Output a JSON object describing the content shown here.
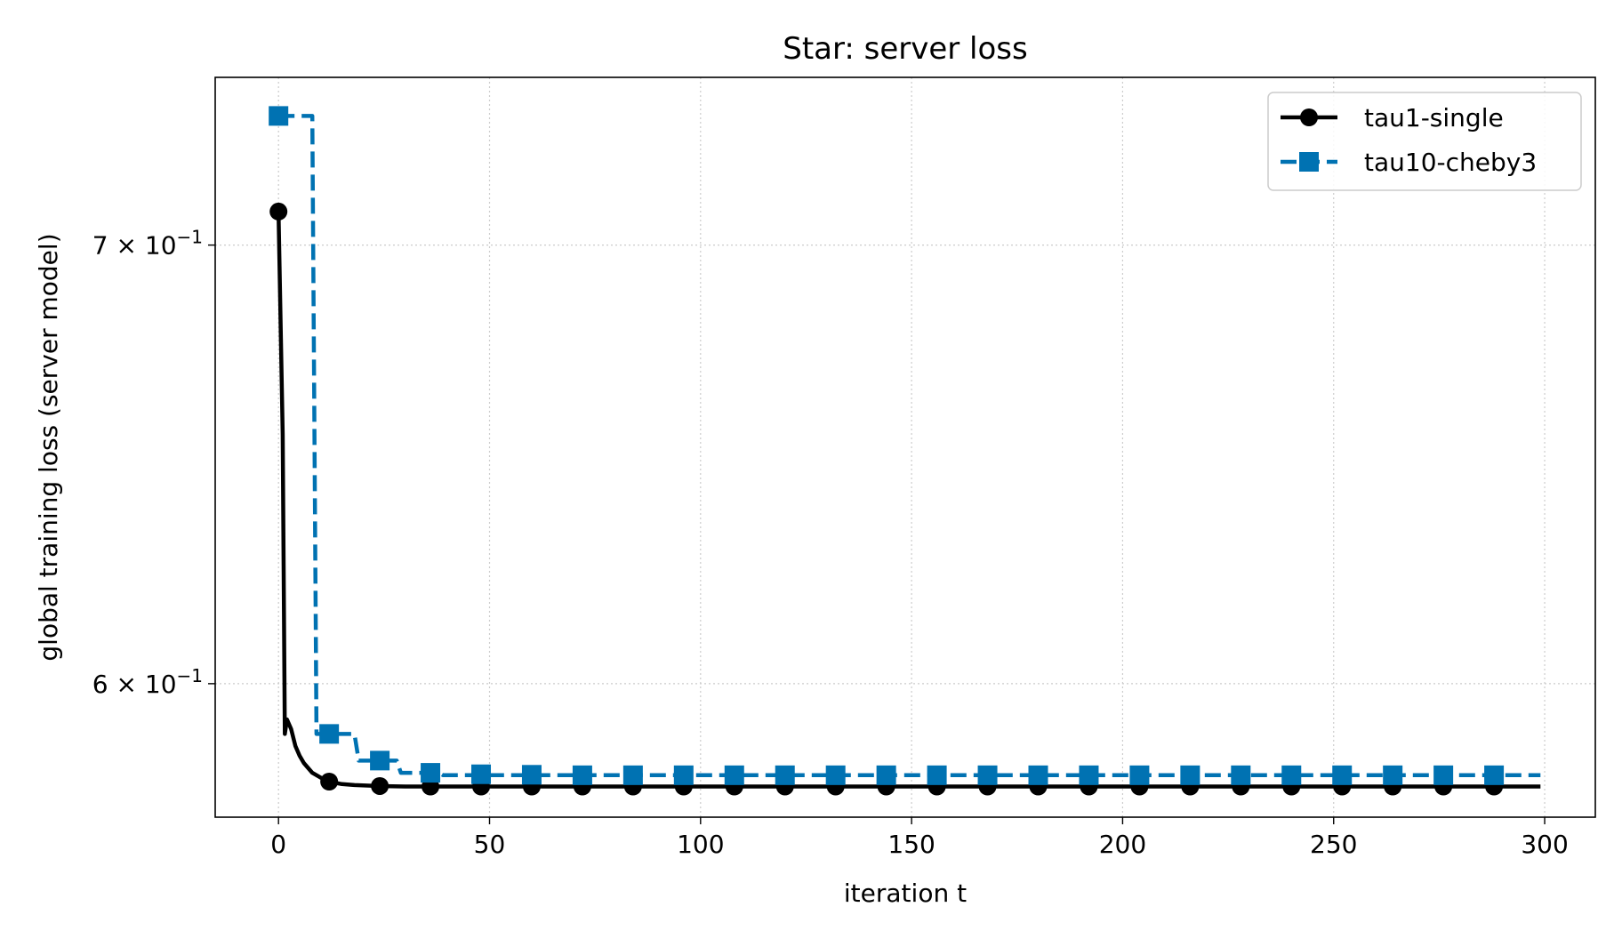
{
  "chart_data": {
    "type": "line",
    "title": "Star: server loss",
    "xlabel": "iteration t",
    "ylabel": "global training loss (server model)",
    "xlim": [
      -15,
      312
    ],
    "ylim": [
      0.5725,
      0.7425
    ],
    "yscale": "log",
    "grid": true,
    "legend_position": "top-right",
    "x_ticks": [
      0,
      50,
      100,
      150,
      200,
      250,
      300
    ],
    "y_ticks": [
      {
        "value": 0.7,
        "mantissa": "7",
        "exponent": "−1"
      },
      {
        "value": 0.6,
        "mantissa": "6",
        "exponent": "−1"
      }
    ],
    "series": [
      {
        "name": "tau1-single",
        "color": "#000000",
        "style": "solid",
        "marker": "circle",
        "x": [
          0,
          1,
          1.5,
          2,
          3,
          4,
          5,
          6,
          8,
          10,
          12,
          15,
          18,
          24,
          30,
          40,
          60,
          100,
          150,
          200,
          250,
          299
        ],
        "y": [
          0.7083,
          0.655,
          0.5895,
          0.5925,
          0.5905,
          0.587,
          0.585,
          0.5835,
          0.5815,
          0.5805,
          0.5797,
          0.5792,
          0.579,
          0.5788,
          0.5787,
          0.5787,
          0.5787,
          0.5787,
          0.5787,
          0.5787,
          0.5787,
          0.5787
        ],
        "marker_x": [
          0,
          12,
          24,
          36,
          48,
          60,
          72,
          84,
          96,
          108,
          120,
          132,
          144,
          156,
          168,
          180,
          192,
          204,
          216,
          228,
          240,
          252,
          264,
          276,
          288
        ],
        "marker_y": [
          0.7083,
          0.5797,
          0.5788,
          0.5787,
          0.5787,
          0.5787,
          0.5787,
          0.5787,
          0.5787,
          0.5787,
          0.5787,
          0.5787,
          0.5787,
          0.5787,
          0.5787,
          0.5787,
          0.5787,
          0.5787,
          0.5787,
          0.5787,
          0.5787,
          0.5787,
          0.5787,
          0.5787,
          0.5787
        ]
      },
      {
        "name": "tau10-cheby3",
        "color": "#0072b2",
        "style": "dashed",
        "marker": "square",
        "x": [
          0,
          8,
          9,
          18,
          19,
          28,
          29,
          38,
          39,
          299
        ],
        "y": [
          0.7325,
          0.7325,
          0.5895,
          0.5895,
          0.584,
          0.584,
          0.5815,
          0.5815,
          0.581,
          0.581
        ],
        "marker_x": [
          0,
          12,
          24,
          36,
          48,
          60,
          72,
          84,
          96,
          108,
          120,
          132,
          144,
          156,
          168,
          180,
          192,
          204,
          216,
          228,
          240,
          252,
          264,
          276,
          288
        ],
        "marker_y": [
          0.7325,
          0.5895,
          0.584,
          0.5815,
          0.5812,
          0.5811,
          0.581,
          0.581,
          0.581,
          0.581,
          0.581,
          0.581,
          0.581,
          0.581,
          0.581,
          0.581,
          0.581,
          0.581,
          0.581,
          0.581,
          0.581,
          0.581,
          0.581,
          0.581,
          0.581
        ]
      }
    ]
  }
}
